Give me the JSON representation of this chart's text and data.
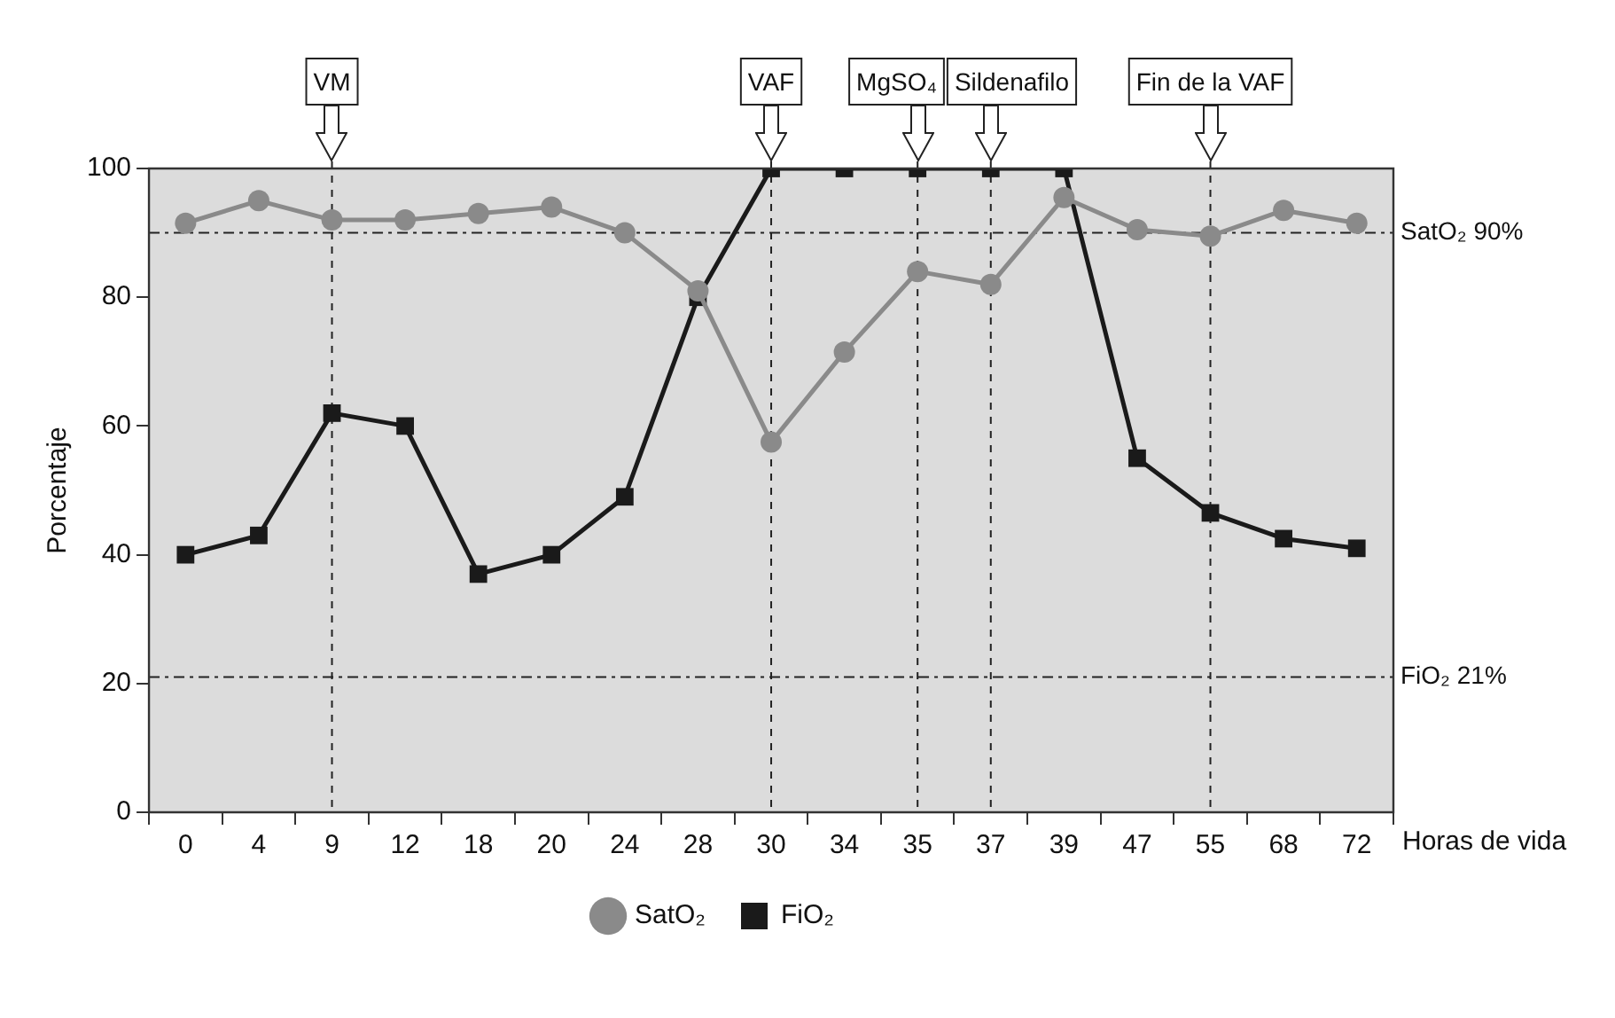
{
  "chart_data": {
    "type": "line",
    "ylabel": "Porcentaje",
    "xlabel": "Horas de vida",
    "categories": [
      "0",
      "4",
      "9",
      "12",
      "18",
      "20",
      "24",
      "28",
      "30",
      "34",
      "35",
      "37",
      "39",
      "47",
      "55",
      "68",
      "72"
    ],
    "series": [
      {
        "name": "FiO₂",
        "color": "#1a1a1a",
        "marker": "square",
        "values": [
          40,
          43,
          62,
          60,
          37,
          40,
          49,
          80,
          100,
          100,
          100,
          100,
          100,
          55,
          46.5,
          42.5,
          41
        ]
      },
      {
        "name": "SatO₂",
        "color": "#8a8a8a",
        "marker": "circle",
        "values": [
          91.5,
          95,
          92,
          92,
          93,
          94,
          90,
          81,
          57.5,
          71.5,
          84,
          82,
          95.5,
          90.5,
          89.5,
          93.5,
          91.5
        ]
      }
    ],
    "ylim": [
      0,
      100
    ],
    "yticks": [
      0,
      20,
      40,
      60,
      80,
      100
    ],
    "grid": false,
    "legend": "bottom",
    "ref_lines": [
      {
        "axis": "y",
        "value": 90,
        "label": "SatO₂ 90%",
        "line_style": "dashdot"
      },
      {
        "axis": "y",
        "value": 21,
        "label": "FiO₂ 21%",
        "line_style": "dashdot"
      },
      {
        "axis": "x",
        "value": "9",
        "label": "VM",
        "line_style": "dashed"
      },
      {
        "axis": "x",
        "value": "30",
        "label": "VAF",
        "line_style": "dashed"
      },
      {
        "axis": "x",
        "value": "35",
        "label": "MgSO₄",
        "line_style": "dashed"
      },
      {
        "axis": "x",
        "value": "37",
        "label": "Sildenafilo",
        "line_style": "dashed"
      },
      {
        "axis": "x",
        "value": "55",
        "label": "Fin de la VAF",
        "line_style": "dashed"
      }
    ]
  }
}
